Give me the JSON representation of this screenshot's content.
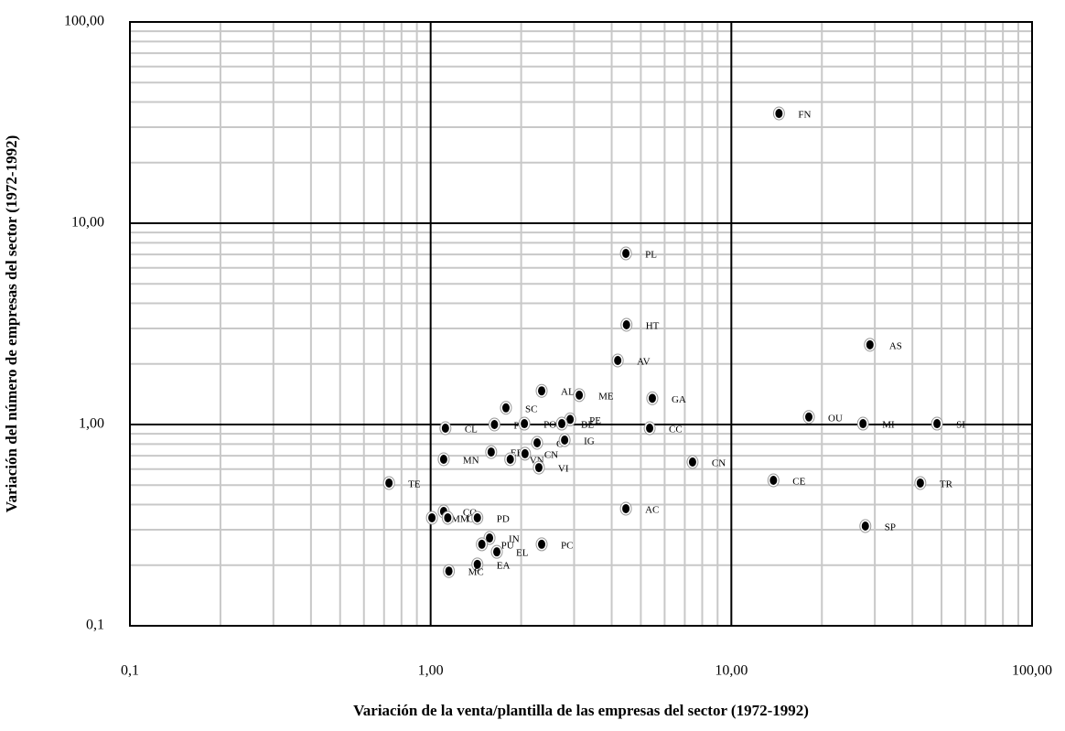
{
  "chart_data": {
    "type": "scatter",
    "x_label": "Variación de la venta/plantilla  de las empresas del sector (1972-1992)",
    "y_label": "Variación del número de empresas  del sector (1972-1992)",
    "log_x": true,
    "log_y": true,
    "grid": true,
    "color": "#000000",
    "xlim": [
      0.1,
      100
    ],
    "ylim": [
      0.1,
      100
    ],
    "xticks": [
      {
        "value": 0.1,
        "label": "0,1"
      },
      {
        "value": 1,
        "label": "1,00"
      },
      {
        "value": 10,
        "label": "10,00"
      },
      {
        "value": 100,
        "label": "100,00"
      }
    ],
    "yticks": [
      {
        "value": 0.1,
        "label": "0,1"
      },
      {
        "value": 1,
        "label": "1,00"
      },
      {
        "value": 10,
        "label": "10,00"
      },
      {
        "value": 100,
        "label": "100,00"
      }
    ],
    "labels": [
      "FN",
      "PL",
      "HT",
      "AV",
      "AS",
      "AL",
      "ME",
      "GA",
      "SC",
      "OU",
      "MI",
      "SI",
      "PE",
      "BE",
      "PI",
      "PO",
      "CL",
      "CC",
      "CN",
      "CI",
      "IG",
      "EE",
      "MN",
      "VN",
      "CN",
      "VI",
      "TE",
      "CE",
      "TR",
      "AC",
      "MM",
      "CO",
      "CF",
      "PD",
      "IN",
      "PU",
      "PC",
      "EL",
      "EA",
      "MC",
      "SP"
    ],
    "x": [
      14.4,
      4.46,
      4.48,
      4.19,
      28.9,
      2.34,
      3.12,
      5.46,
      1.78,
      18.1,
      27.4,
      48.3,
      2.91,
      2.73,
      1.63,
      2.05,
      1.12,
      5.35,
      7.43,
      2.26,
      2.79,
      1.59,
      1.105,
      1.84,
      2.06,
      2.29,
      0.727,
      13.8,
      42.5,
      4.46,
      1.01,
      1.105,
      1.14,
      1.43,
      1.57,
      1.48,
      2.34,
      1.66,
      1.43,
      1.15,
      27.9
    ],
    "y": [
      35.1,
      7.08,
      3.13,
      2.08,
      2.49,
      1.47,
      1.4,
      1.35,
      1.21,
      1.09,
      1.01,
      1.01,
      1.06,
      1.01,
      1.0,
      1.01,
      0.959,
      0.959,
      0.651,
      0.811,
      0.837,
      0.73,
      0.672,
      0.672,
      0.716,
      0.611,
      0.512,
      0.528,
      0.512,
      0.382,
      0.344,
      0.37,
      0.344,
      0.344,
      0.273,
      0.254,
      0.254,
      0.233,
      0.202,
      0.187,
      0.313
    ]
  }
}
